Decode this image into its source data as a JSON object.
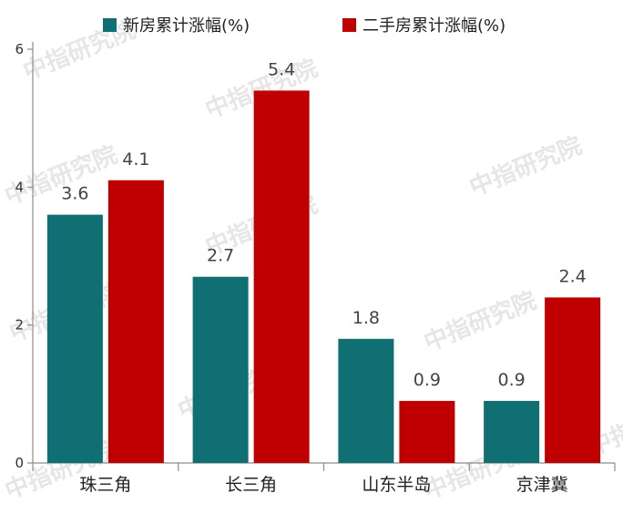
{
  "chart_data": {
    "type": "bar",
    "categories": [
      "珠三角",
      "长三角",
      "山东半岛",
      "京津冀"
    ],
    "series": [
      {
        "name": "新房累计涨幅(%)",
        "values": [
          3.6,
          2.7,
          1.8,
          0.9
        ],
        "color": "#0f6f73"
      },
      {
        "name": "二手房累计涨幅(%)",
        "values": [
          4.1,
          5.4,
          0.9,
          2.4
        ],
        "color": "#c00000"
      }
    ],
    "data_labels": [
      [
        "3.6",
        "2.7",
        "1.8",
        "0.9"
      ],
      [
        "4.1",
        "5.4",
        "0.9",
        "2.4"
      ]
    ],
    "yticks": [
      0,
      2,
      4,
      6
    ],
    "ylim": [
      0,
      6
    ],
    "grid": false,
    "legend_position": "top",
    "watermark": "中指研究院"
  }
}
